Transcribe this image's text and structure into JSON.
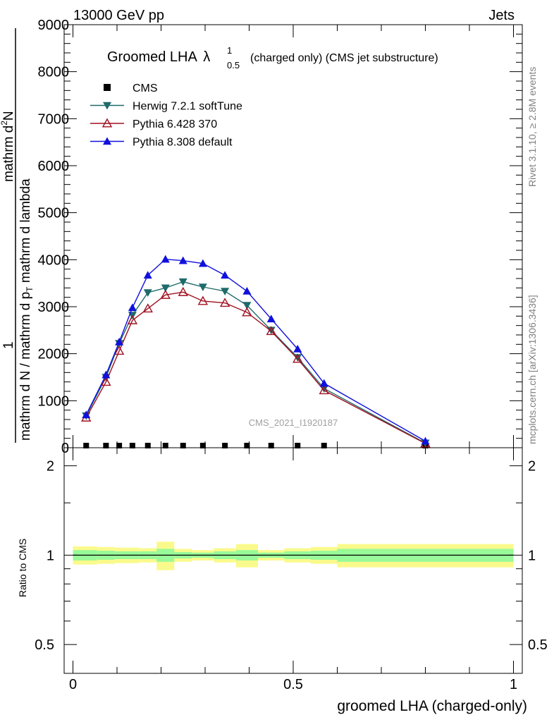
{
  "header": {
    "left": "13000 GeV pp",
    "right": "Jets"
  },
  "title": {
    "main": "Groomed LHA",
    "symbol": "λ",
    "sup": "1",
    "sub": "0.5",
    "suffix": "(charged only) (CMS jet substructure)"
  },
  "side_text": {
    "rivet": "Rivet 3.1.10, ≥ 2.8M events",
    "mcplots": "mcplots.cern.ch [arXiv:1306.3436]"
  },
  "watermark": "CMS_2021_I1920187",
  "upper_panel": {
    "ylabel": {
      "numerator_one": "1",
      "numerator_top": "mathrm d",
      "numerator_sup": "2",
      "numerator_tail": "N",
      "denominator": "mathrm d N / mathrm d p",
      "den_sub": "T",
      "den_tail": " mathrm d lambda"
    },
    "ytick_labels": [
      "0",
      "1000",
      "2000",
      "3000",
      "4000",
      "5000",
      "6000",
      "7000",
      "8000",
      "9000"
    ]
  },
  "lower_panel": {
    "ylabel": "Ratio to CMS",
    "ytick_labels": [
      "0.5",
      "1",
      "2"
    ]
  },
  "xaxis": {
    "label": "groomed LHA (charged-only)",
    "tick_labels": [
      "0",
      "0.5",
      "1"
    ]
  },
  "legend": {
    "position": "top-left",
    "entries": [
      {
        "label": "CMS",
        "color": "#000000",
        "marker": "square"
      },
      {
        "label": "Herwig 7.2.1 softTune",
        "color": "#1f6a6a",
        "marker": "triangle-down"
      },
      {
        "label": "Pythia 6.428 370",
        "color": "#a01020",
        "marker": "triangle-up-open"
      },
      {
        "label": "Pythia 8.308 default",
        "color": "#1010dd",
        "marker": "triangle-up"
      }
    ]
  },
  "chart_data": {
    "type": "line",
    "xlim": [
      -0.02,
      1.02
    ],
    "ylim": [
      0,
      9000
    ],
    "ratio_ylim": [
      0.4,
      2.3
    ],
    "ratio_log": true,
    "x": [
      0.03,
      0.075,
      0.105,
      0.135,
      0.17,
      0.21,
      0.25,
      0.295,
      0.345,
      0.395,
      0.45,
      0.51,
      0.57,
      0.8
    ],
    "series": [
      {
        "name": "CMS",
        "values": [
          15,
          15,
          15,
          15,
          15,
          15,
          15,
          15,
          15,
          15,
          15,
          15,
          15,
          15
        ]
      },
      {
        "name": "Herwig 7.2.1 softTune",
        "values": [
          680,
          1500,
          2220,
          2820,
          3300,
          3400,
          3530,
          3420,
          3330,
          3030,
          2500,
          1920,
          1260,
          100
        ]
      },
      {
        "name": "Pythia 6.428 370",
        "values": [
          640,
          1400,
          2060,
          2710,
          2960,
          3250,
          3310,
          3120,
          3080,
          2880,
          2480,
          1890,
          1220,
          90
        ]
      },
      {
        "name": "Pythia 8.308 default",
        "values": [
          700,
          1550,
          2250,
          2980,
          3670,
          4010,
          3980,
          3920,
          3670,
          3330,
          2740,
          2100,
          1370,
          140
        ]
      }
    ],
    "ratio_band": {
      "x_edges": [
        0.0,
        0.055,
        0.095,
        0.12,
        0.15,
        0.19,
        0.23,
        0.27,
        0.32,
        0.37,
        0.42,
        0.48,
        0.54,
        0.6,
        1.0
      ],
      "stat_err": [
        0.04,
        0.035,
        0.03,
        0.03,
        0.03,
        0.05,
        0.025,
        0.02,
        0.03,
        0.04,
        0.02,
        0.03,
        0.035,
        0.05
      ],
      "total_err": [
        0.07,
        0.065,
        0.06,
        0.06,
        0.055,
        0.11,
        0.05,
        0.04,
        0.055,
        0.09,
        0.04,
        0.055,
        0.065,
        0.09
      ]
    }
  },
  "colors": {
    "stat_band": "#98fa98",
    "total_band": "#fafa8c"
  }
}
